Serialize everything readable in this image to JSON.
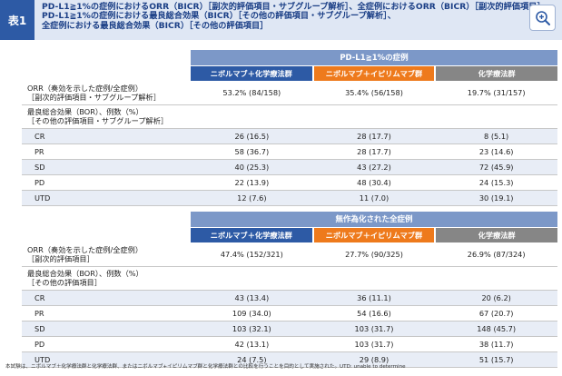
{
  "header": {
    "tag": "表1",
    "title_lines": [
      "PD-L1≧1%の症例におけるORR（BICR）［副次的評価項目・サブグループ解析］、全症例におけるORR（BICR）［副次的評価項目］",
      "PD-L1≧1%の症例における最良総合効果（BICR）［その他の評価項目・サブグループ解析］、",
      "全症例における最良総合効果（BICR）［その他の評価項目］"
    ],
    "zoom_icon": "zoom-in-icon"
  },
  "tables": [
    {
      "banner": "PD-L1≧1%の症例",
      "groups": [
        "ニボルマブ＋化学療法群",
        "ニボルマブ＋イピリムマブ群",
        "化学療法群"
      ],
      "orr_label_lines": [
        "ORR（奏効を示した症例/全症例）",
        "［副次的評価項目・サブグループ解析］"
      ],
      "orr_values": [
        "53.2% (84/158)",
        "35.4% (56/158)",
        "19.7% (31/157)"
      ],
      "bor_label_lines": [
        "最良総合効果（BOR）、例数（%）",
        "［その他の評価項目・サブグループ解析］"
      ],
      "rows": [
        {
          "label": "CR",
          "values": [
            "26 (16.5)",
            "28 (17.7)",
            "8 (5.1)"
          ]
        },
        {
          "label": "PR",
          "values": [
            "58 (36.7)",
            "28 (17.7)",
            "23 (14.6)"
          ]
        },
        {
          "label": "SD",
          "values": [
            "40 (25.3)",
            "43 (27.2)",
            "72 (45.9)"
          ]
        },
        {
          "label": "PD",
          "values": [
            "22 (13.9)",
            "48 (30.4)",
            "24 (15.3)"
          ]
        },
        {
          "label": "UTD",
          "values": [
            "12 (7.6)",
            "11 (7.0)",
            "30 (19.1)"
          ]
        }
      ]
    },
    {
      "banner": "無作為化された全症例",
      "groups": [
        "ニボルマブ＋化学療法群",
        "ニボルマブ＋イピリムマブ群",
        "化学療法群"
      ],
      "orr_label_lines": [
        "ORR（奏効を示した症例/全症例）",
        "［副次的評価項目］"
      ],
      "orr_values": [
        "47.4% (152/321)",
        "27.7% (90/325)",
        "26.9% (87/324)"
      ],
      "bor_label_lines": [
        "最良総合効果（BOR）、例数（%）",
        "［その他の評価項目］"
      ],
      "rows": [
        {
          "label": "CR",
          "values": [
            "43 (13.4)",
            "36 (11.1)",
            "20 (6.2)"
          ]
        },
        {
          "label": "PR",
          "values": [
            "109 (34.0)",
            "54 (16.6)",
            "67 (20.7)"
          ]
        },
        {
          "label": "SD",
          "values": [
            "103 (32.1)",
            "103 (31.7)",
            "148 (45.7)"
          ]
        },
        {
          "label": "PD",
          "values": [
            "42 (13.1)",
            "103 (31.7)",
            "38 (11.7)"
          ]
        },
        {
          "label": "UTD",
          "values": [
            "24 (7.5)",
            "29 (8.9)",
            "51 (15.7)"
          ]
        }
      ]
    }
  ],
  "footnote": "本試験は、ニボルマブ＋化学療法群と化学療法群、またはニボルマブ+イピリムマブ群と化学療法群との比較を行うことを目的として実施された。UTD: unable to determine",
  "colors": {
    "header_bg": "#dfe7f4",
    "tag_bg": "#2d5aa5",
    "banner_bg": "#7c98c8",
    "group_blue": "#2d5aa5",
    "group_orange": "#ee7a1c",
    "group_gray": "#868686",
    "row_shade": "#e8edf6"
  }
}
